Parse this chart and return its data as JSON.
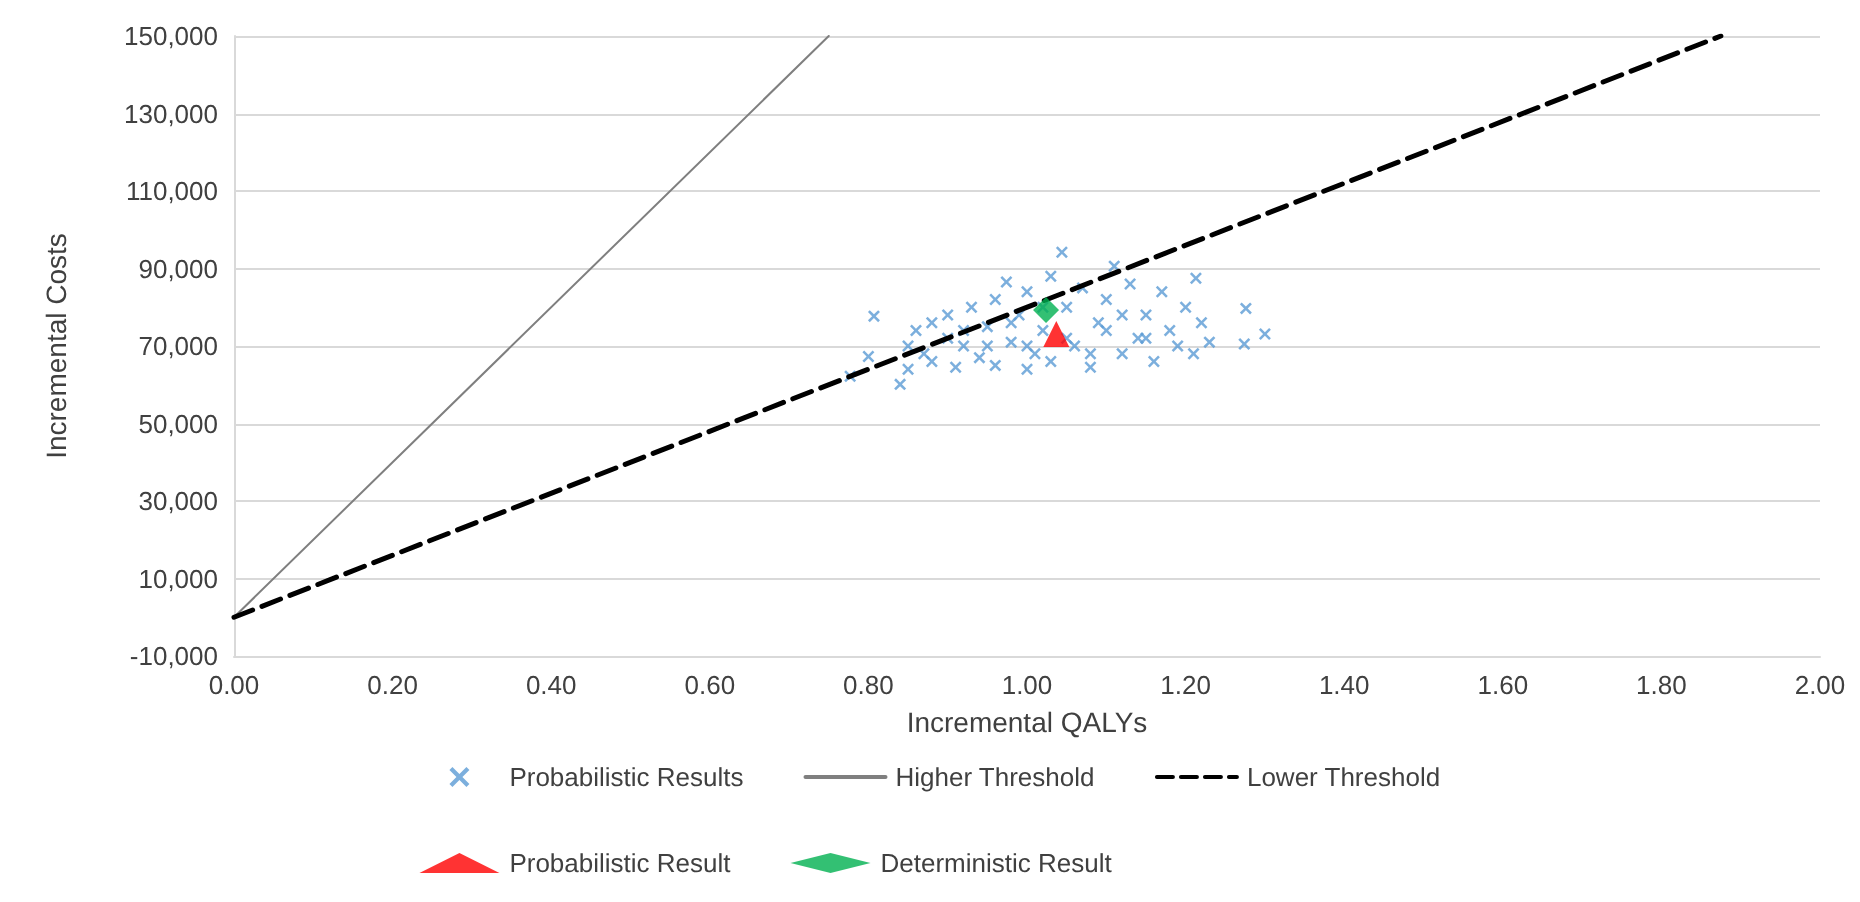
{
  "chart_data": {
    "type": "scatter",
    "xlabel": "Incremental QALYs",
    "ylabel": "Incremental Costs",
    "xlim": [
      0,
      2
    ],
    "xticks": [
      {
        "value": 0,
        "label": "0.00"
      },
      {
        "value": 0.2,
        "label": "0.20"
      },
      {
        "value": 0.4,
        "label": "0.40"
      },
      {
        "value": 0.6,
        "label": "0.60"
      },
      {
        "value": 0.8,
        "label": "0.80"
      },
      {
        "value": 1,
        "label": "1.00"
      },
      {
        "value": 1.2,
        "label": "1.20"
      },
      {
        "value": 1.4,
        "label": "1.40"
      },
      {
        "value": 1.6,
        "label": "1.60"
      },
      {
        "value": 1.8,
        "label": "1.80"
      },
      {
        "value": 2,
        "label": "2.00"
      }
    ],
    "ylim": [
      -10000,
      150000
    ],
    "yticks": [
      {
        "value": -10000,
        "label": "-10,000"
      },
      {
        "value": 10000,
        "label": "10,000"
      },
      {
        "value": 30000,
        "label": "30,000"
      },
      {
        "value": 50000,
        "label": "50,000"
      },
      {
        "value": 70000,
        "label": "70,000"
      },
      {
        "value": 90000,
        "label": "90,000"
      },
      {
        "value": 110000,
        "label": "110,000"
      },
      {
        "value": 130000,
        "label": "130,000"
      },
      {
        "value": 150000,
        "label": "150,000"
      }
    ],
    "grid": "y",
    "legend": "bottom",
    "series": [
      {
        "name": "Probabilistic Results",
        "marker": "cross",
        "color": "#5b9bd5",
        "x": [
          0.777,
          0.8,
          0.807,
          0.84,
          0.85,
          0.85,
          0.86,
          0.87,
          0.88,
          0.88,
          0.9,
          0.9,
          0.91,
          0.92,
          0.93,
          0.94,
          0.95,
          0.96,
          0.96,
          0.974,
          0.98,
          0.99,
          1.0,
          1.0,
          1.01,
          1.02,
          1.03,
          1.03,
          1.044,
          1.05,
          1.06,
          1.07,
          1.08,
          1.09,
          1.1,
          1.11,
          1.12,
          1.13,
          1.14,
          1.15,
          1.16,
          1.17,
          1.18,
          1.19,
          1.2,
          1.213,
          1.21,
          1.22,
          1.23,
          1.274,
          1.276,
          1.3,
          0.95,
          1.05,
          1.1,
          0.98,
          1.08,
          1.15,
          0.92,
          1.02,
          1.12,
          1.0
        ],
        "values": [
          62200,
          67300,
          77700,
          60100,
          64000,
          70000,
          74000,
          68000,
          76000,
          66000,
          72000,
          78000,
          64500,
          70000,
          80000,
          67000,
          75000,
          82000,
          65000,
          86500,
          71000,
          78000,
          64000,
          84000,
          68000,
          74000,
          88000,
          66000,
          94200,
          80000,
          70000,
          85000,
          64500,
          76000,
          82000,
          90600,
          68000,
          86000,
          72000,
          78000,
          66000,
          84000,
          74000,
          70000,
          80000,
          87500,
          68000,
          76000,
          71000,
          70500,
          79700,
          73100,
          70000,
          72000,
          74000,
          76000,
          68000,
          72000,
          74000,
          80000,
          78000,
          70000
        ]
      },
      {
        "name": "Higher Threshold",
        "type": "line",
        "line_style": "solid",
        "color": "#7f7f7f",
        "x": [
          0,
          0.75
        ],
        "values": [
          0,
          150000
        ]
      },
      {
        "name": "Lower Threshold",
        "type": "line",
        "line_style": "dashed",
        "color": "#000000",
        "x": [
          0,
          1.875
        ],
        "values": [
          0,
          150000
        ]
      },
      {
        "name": "Probabilistic Result",
        "marker": "triangle",
        "color": "#ff0000",
        "x": [
          1.037
        ],
        "values": [
          73100
        ]
      },
      {
        "name": "Deterministic Result",
        "marker": "diamond",
        "color": "#00b050",
        "x": [
          1.024
        ],
        "values": [
          79300
        ]
      }
    ]
  }
}
